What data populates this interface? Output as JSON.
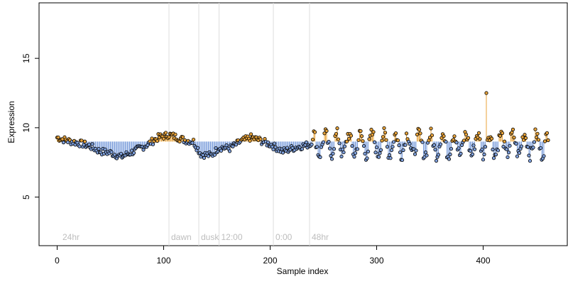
{
  "chart_data": {
    "type": "scatter",
    "title": "",
    "xlabel": "Sample index",
    "ylabel": "Expression",
    "xlim": [
      -17,
      479
    ],
    "ylim": [
      1.5,
      19
    ],
    "x_ticks": [
      0,
      100,
      200,
      300,
      400
    ],
    "y_ticks": [
      5,
      10,
      15
    ],
    "baseline": 9.0,
    "phase_markers": [
      {
        "x": 3,
        "label": "24hr",
        "line": false
      },
      {
        "x": 105,
        "label": "dawn",
        "line": true
      },
      {
        "x": 133,
        "label": "dusk",
        "line": true
      },
      {
        "x": 152,
        "label": "12:00",
        "line": true
      },
      {
        "x": 203,
        "label": "0:00",
        "line": true
      },
      {
        "x": 237,
        "label": "48hr",
        "line": true
      }
    ],
    "colors": {
      "above": "#e8a33a",
      "below": "#7fa0dc",
      "point_stroke": "#000000",
      "phase_line": "#dddddd",
      "phase_text": "#bdbdbd"
    },
    "series_anchors": {
      "x": [
        0,
        8,
        20,
        30,
        40,
        50,
        60,
        72,
        85,
        95,
        105,
        113,
        120,
        128,
        135,
        145,
        152,
        162,
        172,
        182,
        190,
        200,
        212,
        225,
        237
      ],
      "y": [
        9.3,
        9.1,
        8.9,
        8.7,
        8.3,
        8.2,
        7.9,
        8.3,
        8.8,
        9.3,
        9.5,
        9.3,
        9.1,
        9.0,
        8.1,
        8.0,
        8.6,
        8.5,
        9.0,
        9.3,
        9.1,
        8.8,
        8.3,
        8.6,
        8.8
      ]
    },
    "series_tail": {
      "x_start": 238,
      "x_end": 461,
      "mean": 8.8,
      "amplitude": 0.75,
      "period": 11,
      "spike": {
        "x": 403,
        "y": 12.5
      }
    },
    "n_points": 462
  }
}
